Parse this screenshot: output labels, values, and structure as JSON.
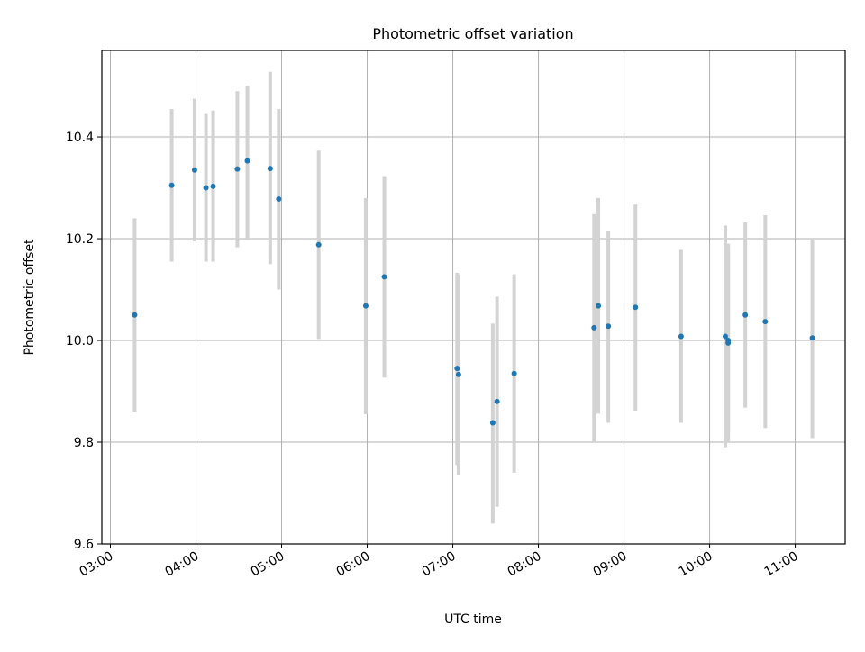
{
  "chart_data": {
    "type": "scatter",
    "title": "Photometric offset variation",
    "xlabel": "UTC time",
    "ylabel": "Photometric offset",
    "grid": true,
    "legend": "none",
    "xlim": [
      "02:54",
      "11:35"
    ],
    "ylim": [
      9.6,
      10.57
    ],
    "xticks": [
      "03:00",
      "04:00",
      "05:00",
      "06:00",
      "07:00",
      "08:00",
      "09:00",
      "10:00",
      "11:00"
    ],
    "yticks": [
      "9.6",
      "9.8",
      "10.0",
      "10.2",
      "10.4"
    ],
    "colors": {
      "point": "#1f77b4",
      "errorbar": "#d3d3d3",
      "grid": "#b0b0b0"
    },
    "series": [
      {
        "points": [
          {
            "x": "03:17",
            "y": 10.05,
            "ylow": 9.86,
            "yhigh": 10.24
          },
          {
            "x": "03:43",
            "y": 10.305,
            "ylow": 10.155,
            "yhigh": 10.455
          },
          {
            "x": "03:59",
            "y": 10.335,
            "ylow": 10.195,
            "yhigh": 10.475
          },
          {
            "x": "04:07",
            "y": 10.3,
            "ylow": 10.155,
            "yhigh": 10.445
          },
          {
            "x": "04:12",
            "y": 10.303,
            "ylow": 10.155,
            "yhigh": 10.452
          },
          {
            "x": "04:29",
            "y": 10.337,
            "ylow": 10.183,
            "yhigh": 10.49
          },
          {
            "x": "04:36",
            "y": 10.353,
            "ylow": 10.198,
            "yhigh": 10.5
          },
          {
            "x": "04:52",
            "y": 10.338,
            "ylow": 10.15,
            "yhigh": 10.528
          },
          {
            "x": "04:58",
            "y": 10.278,
            "ylow": 10.1,
            "yhigh": 10.455
          },
          {
            "x": "05:26",
            "y": 10.188,
            "ylow": 10.003,
            "yhigh": 10.373
          },
          {
            "x": "05:59",
            "y": 10.068,
            "ylow": 9.855,
            "yhigh": 10.28
          },
          {
            "x": "06:12",
            "y": 10.125,
            "ylow": 9.927,
            "yhigh": 10.323
          },
          {
            "x": "07:03",
            "y": 9.945,
            "ylow": 9.755,
            "yhigh": 10.133
          },
          {
            "x": "07:04",
            "y": 9.933,
            "ylow": 9.735,
            "yhigh": 10.13
          },
          {
            "x": "07:28",
            "y": 9.838,
            "ylow": 9.64,
            "yhigh": 10.033
          },
          {
            "x": "07:31",
            "y": 9.88,
            "ylow": 9.673,
            "yhigh": 10.086
          },
          {
            "x": "07:43",
            "y": 9.935,
            "ylow": 9.74,
            "yhigh": 10.13
          },
          {
            "x": "08:39",
            "y": 10.025,
            "ylow": 9.8,
            "yhigh": 10.248
          },
          {
            "x": "08:42",
            "y": 10.068,
            "ylow": 9.856,
            "yhigh": 10.28
          },
          {
            "x": "08:49",
            "y": 10.028,
            "ylow": 9.838,
            "yhigh": 10.216
          },
          {
            "x": "09:08",
            "y": 10.065,
            "ylow": 9.862,
            "yhigh": 10.267
          },
          {
            "x": "09:40",
            "y": 10.008,
            "ylow": 9.838,
            "yhigh": 10.178
          },
          {
            "x": "10:11",
            "y": 10.008,
            "ylow": 9.79,
            "yhigh": 10.226
          },
          {
            "x": "10:13",
            "y": 9.995,
            "ylow": 9.8,
            "yhigh": 10.19
          },
          {
            "x": "10:13",
            "y": 10.0,
            "ylow": 9.815,
            "yhigh": 10.185
          },
          {
            "x": "10:25",
            "y": 10.05,
            "ylow": 9.868,
            "yhigh": 10.232
          },
          {
            "x": "10:39",
            "y": 10.037,
            "ylow": 9.828,
            "yhigh": 10.246
          },
          {
            "x": "11:12",
            "y": 10.005,
            "ylow": 9.808,
            "yhigh": 10.2
          }
        ]
      }
    ]
  }
}
